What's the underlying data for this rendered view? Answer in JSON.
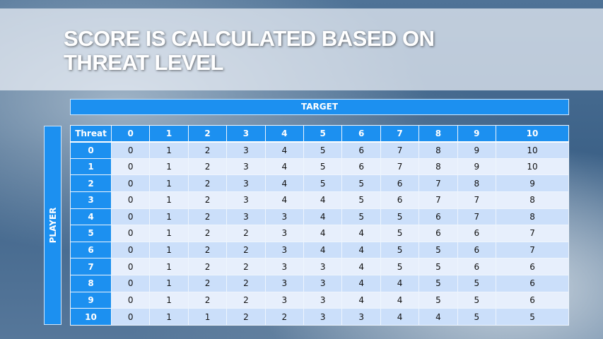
{
  "title": "SCORE IS CALCULATED BASED ON THREAT LEVEL",
  "title_lines": [
    "SCORE IS CALCULATED BASED ON",
    "THREAT LEVEL"
  ],
  "target_label": "TARGET",
  "player_label": "PLAYER",
  "table": {
    "corner": "Threat",
    "columns": [
      "0",
      "1",
      "2",
      "3",
      "4",
      "5",
      "6",
      "7",
      "8",
      "9",
      "10"
    ],
    "rows": [
      {
        "label": "0",
        "values": [
          "0",
          "1",
          "2",
          "3",
          "4",
          "5",
          "6",
          "7",
          "8",
          "9",
          "10"
        ]
      },
      {
        "label": "1",
        "values": [
          "0",
          "1",
          "2",
          "3",
          "4",
          "5",
          "6",
          "7",
          "8",
          "9",
          "10"
        ]
      },
      {
        "label": "2",
        "values": [
          "0",
          "1",
          "2",
          "3",
          "4",
          "5",
          "5",
          "6",
          "7",
          "8",
          "9"
        ]
      },
      {
        "label": "3",
        "values": [
          "0",
          "1",
          "2",
          "3",
          "4",
          "4",
          "5",
          "6",
          "7",
          "7",
          "8"
        ]
      },
      {
        "label": "4",
        "values": [
          "0",
          "1",
          "2",
          "3",
          "3",
          "4",
          "5",
          "5",
          "6",
          "7",
          "8"
        ]
      },
      {
        "label": "5",
        "values": [
          "0",
          "1",
          "2",
          "2",
          "3",
          "4",
          "4",
          "5",
          "6",
          "6",
          "7"
        ]
      },
      {
        "label": "6",
        "values": [
          "0",
          "1",
          "2",
          "2",
          "3",
          "4",
          "4",
          "5",
          "5",
          "6",
          "7"
        ]
      },
      {
        "label": "7",
        "values": [
          "0",
          "1",
          "2",
          "2",
          "3",
          "3",
          "4",
          "5",
          "5",
          "6",
          "6"
        ]
      },
      {
        "label": "8",
        "values": [
          "0",
          "1",
          "2",
          "2",
          "3",
          "3",
          "4",
          "4",
          "5",
          "5",
          "6"
        ]
      },
      {
        "label": "9",
        "values": [
          "0",
          "1",
          "2",
          "2",
          "3",
          "3",
          "4",
          "4",
          "5",
          "5",
          "6"
        ]
      },
      {
        "label": "10",
        "values": [
          "0",
          "1",
          "1",
          "2",
          "2",
          "3",
          "3",
          "4",
          "4",
          "5",
          "5"
        ]
      }
    ]
  },
  "colors": {
    "header": "#1c90f0",
    "row_odd": "#cbdffa",
    "row_even": "#e7effc"
  }
}
